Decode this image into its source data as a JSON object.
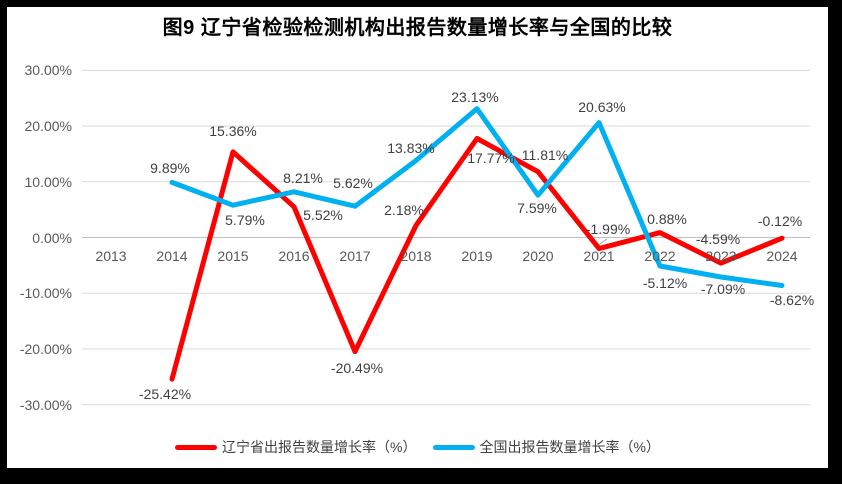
{
  "title": "图9  辽宁省检验检测机构出报告数量增长率与全国的比较",
  "colors": {
    "liaoning_line": "#FF0000",
    "national_line": "#00B0F0",
    "gridline": "#D9D9D9",
    "zero_axis": "#BFBFBF",
    "axis_text": "#595959",
    "label_text": "#404040",
    "frame": "#000000",
    "background": "#FFFFFF"
  },
  "chart_data": {
    "type": "line",
    "title": "图9  辽宁省检验检测机构出报告数量增长率与全国的比较",
    "categories": [
      "2013",
      "2014",
      "2015",
      "2016",
      "2017",
      "2018",
      "2019",
      "2020",
      "2021",
      "2022",
      "2023",
      "2024"
    ],
    "series": [
      {
        "name": "辽宁省出报告数量增长率（%）",
        "color": "#FF0000",
        "values": [
          null,
          -25.42,
          15.36,
          5.52,
          -20.49,
          2.18,
          17.77,
          11.81,
          -1.99,
          0.88,
          -4.59,
          -0.12
        ],
        "labels": [
          null,
          "-25.42%",
          "15.36%",
          "5.52%",
          "-20.49%",
          "2.18%",
          "17.77%",
          "11.81%",
          "-1.99%",
          "0.88%",
          "-4.59%",
          "-0.12%"
        ]
      },
      {
        "name": "全国出报告数量增长率（%）",
        "color": "#00B0F0",
        "values": [
          null,
          9.89,
          5.79,
          8.21,
          5.62,
          13.83,
          23.13,
          7.59,
          20.63,
          -5.12,
          -7.09,
          -8.62
        ],
        "labels": [
          null,
          "9.89%",
          "5.79%",
          "8.21%",
          "5.62%",
          "13.83%",
          "23.13%",
          "7.59%",
          "20.63%",
          "-5.12%",
          "-7.09%",
          "-8.62%"
        ]
      }
    ],
    "y_ticks": [
      "30.00%",
      "20.00%",
      "10.00%",
      "0.00%",
      "-10.00%",
      "-20.00%",
      "-30.00%"
    ],
    "ylim": [
      -30,
      30
    ],
    "xlabel": "",
    "ylabel": "",
    "grid": true,
    "legend_position": "bottom"
  }
}
